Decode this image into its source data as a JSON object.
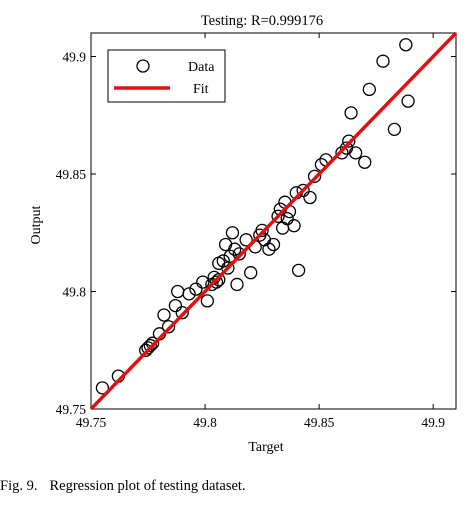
{
  "chart_data": {
    "type": "scatter",
    "title": "Testing: R=0.999176",
    "xlabel": "Target",
    "ylabel": "Output",
    "xlim": [
      49.75,
      49.91
    ],
    "ylim": [
      49.75,
      49.91
    ],
    "x_ticks": [
      "49.75",
      "49.8",
      "49.85",
      "49.9"
    ],
    "y_ticks": [
      "49.75",
      "49.8",
      "49.85",
      "49.9"
    ],
    "grid": false,
    "legend": {
      "placement": "top-left",
      "entries": [
        "Data",
        "Fit"
      ]
    },
    "colors": {
      "fit": "#e01010",
      "data": "#000000"
    },
    "fit_line": {
      "x": [
        49.75,
        49.91
      ],
      "y": [
        49.75,
        49.91
      ]
    },
    "series": [
      {
        "name": "Data",
        "marker": "open-circle",
        "points": [
          [
            49.755,
            49.759
          ],
          [
            49.762,
            49.764
          ],
          [
            49.774,
            49.775
          ],
          [
            49.775,
            49.776
          ],
          [
            49.776,
            49.777
          ],
          [
            49.777,
            49.778
          ],
          [
            49.78,
            49.782
          ],
          [
            49.782,
            49.79
          ],
          [
            49.784,
            49.785
          ],
          [
            49.787,
            49.794
          ],
          [
            49.788,
            49.8
          ],
          [
            49.79,
            49.791
          ],
          [
            49.793,
            49.799
          ],
          [
            49.796,
            49.801
          ],
          [
            49.799,
            49.804
          ],
          [
            49.801,
            49.796
          ],
          [
            49.803,
            49.803
          ],
          [
            49.804,
            49.806
          ],
          [
            49.805,
            49.804
          ],
          [
            49.806,
            49.805
          ],
          [
            49.806,
            49.812
          ],
          [
            49.808,
            49.813
          ],
          [
            49.809,
            49.82
          ],
          [
            49.81,
            49.81
          ],
          [
            49.811,
            49.815
          ],
          [
            49.812,
            49.825
          ],
          [
            49.813,
            49.818
          ],
          [
            49.814,
            49.803
          ],
          [
            49.815,
            49.816
          ],
          [
            49.818,
            49.822
          ],
          [
            49.82,
            49.808
          ],
          [
            49.822,
            49.819
          ],
          [
            49.824,
            49.824
          ],
          [
            49.825,
            49.826
          ],
          [
            49.826,
            49.822
          ],
          [
            49.828,
            49.818
          ],
          [
            49.83,
            49.82
          ],
          [
            49.832,
            49.832
          ],
          [
            49.833,
            49.835
          ],
          [
            49.834,
            49.827
          ],
          [
            49.835,
            49.838
          ],
          [
            49.836,
            49.831
          ],
          [
            49.837,
            49.834
          ],
          [
            49.839,
            49.828
          ],
          [
            49.84,
            49.842
          ],
          [
            49.841,
            49.809
          ],
          [
            49.843,
            49.843
          ],
          [
            49.846,
            49.84
          ],
          [
            49.848,
            49.849
          ],
          [
            49.851,
            49.854
          ],
          [
            49.853,
            49.856
          ],
          [
            49.86,
            49.859
          ],
          [
            49.862,
            49.861
          ],
          [
            49.863,
            49.864
          ],
          [
            49.864,
            49.876
          ],
          [
            49.866,
            49.859
          ],
          [
            49.87,
            49.855
          ],
          [
            49.872,
            49.886
          ],
          [
            49.878,
            49.898
          ],
          [
            49.883,
            49.869
          ],
          [
            49.888,
            49.905
          ],
          [
            49.889,
            49.881
          ]
        ]
      }
    ]
  },
  "caption": {
    "label": "Fig. 9.",
    "text": "Regression plot of testing dataset."
  }
}
